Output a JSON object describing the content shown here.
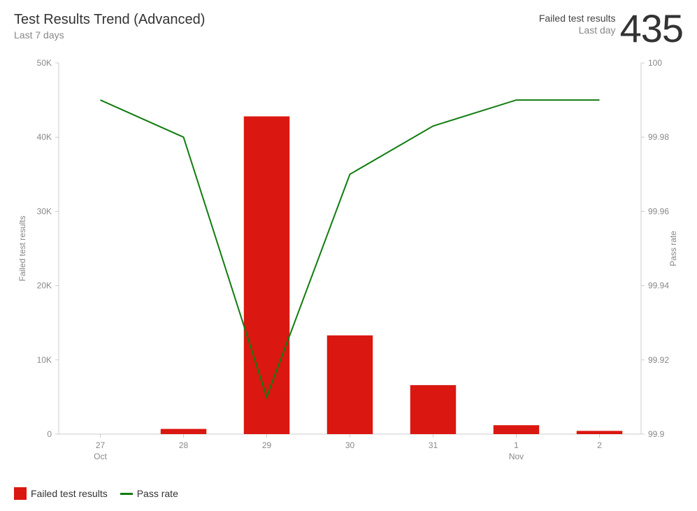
{
  "header": {
    "title": "Test Results Trend (Advanced)",
    "subtitle": "Last 7 days",
    "kpi_label1": "Failed test results",
    "kpi_label2": "Last day",
    "kpi_value": "435"
  },
  "chart": {
    "type": "bar+line",
    "background_color": "#ffffff",
    "axis_color": "#cccccc",
    "tick_label_color": "#888888",
    "axis_title_color": "#888888",
    "label_fontsize": 12,
    "axis_title_fontsize": 12,
    "x": {
      "categories": [
        "27",
        "28",
        "29",
        "30",
        "31",
        "1",
        "2"
      ],
      "month_markers": [
        {
          "index": 0,
          "label": "Oct"
        },
        {
          "index": 5,
          "label": "Nov"
        }
      ]
    },
    "y_left": {
      "title": "Failed test results",
      "min": 0,
      "max": 50000,
      "tick_step": 10000,
      "ticks": [
        "0",
        "10K",
        "20K",
        "30K",
        "40K",
        "50K"
      ]
    },
    "y_right": {
      "title": "Pass rate",
      "min": 99.9,
      "max": 100.0,
      "tick_step": 0.02,
      "ticks": [
        "99.9",
        "99.92",
        "99.94",
        "99.96",
        "99.98",
        "100"
      ]
    },
    "bars": {
      "label": "Failed test results",
      "color": "#da1710",
      "width_ratio": 0.55,
      "values": [
        0,
        700,
        42800,
        13300,
        6600,
        1200,
        435
      ]
    },
    "line": {
      "label": "Pass rate",
      "color": "#107c10",
      "width": 2,
      "values": [
        99.99,
        99.98,
        99.91,
        99.97,
        99.983,
        99.99,
        99.99
      ]
    }
  },
  "legend": {
    "item1": "Failed test results",
    "item2": "Pass rate"
  }
}
